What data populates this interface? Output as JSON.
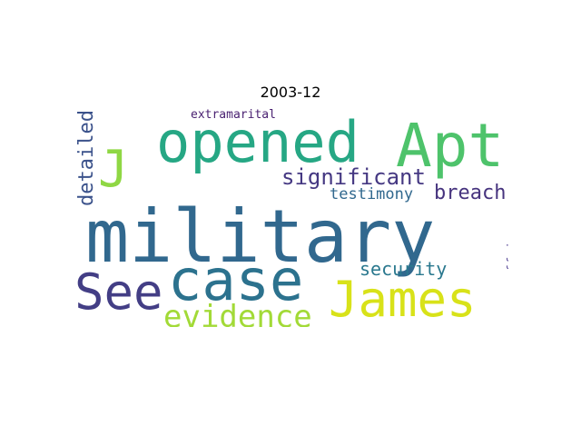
{
  "chart_data": {
    "type": "wordcloud",
    "title": "2003-12",
    "words": [
      {
        "text": "military",
        "color": "#31688e",
        "orientation": "horizontal"
      },
      {
        "text": "opened",
        "color": "#26a784",
        "orientation": "horizontal"
      },
      {
        "text": "Apt",
        "color": "#4ec36b",
        "orientation": "horizontal"
      },
      {
        "text": "case",
        "color": "#2c728e",
        "orientation": "horizontal"
      },
      {
        "text": "See",
        "color": "#433e85",
        "orientation": "horizontal"
      },
      {
        "text": "James",
        "color": "#d8e219",
        "orientation": "horizontal"
      },
      {
        "text": "J",
        "color": "#8fd744",
        "orientation": "horizontal"
      },
      {
        "text": "evidence",
        "color": "#a2da37",
        "orientation": "horizontal"
      },
      {
        "text": "significant",
        "color": "#453882",
        "orientation": "horizontal"
      },
      {
        "text": "security",
        "color": "#2a788e",
        "orientation": "horizontal"
      },
      {
        "text": "breach",
        "color": "#46337e",
        "orientation": "horizontal"
      },
      {
        "text": "testimony",
        "color": "#31688e",
        "orientation": "horizontal"
      },
      {
        "text": "detailed",
        "color": "#3b528b",
        "orientation": "vertical"
      },
      {
        "text": "extramarital",
        "color": "#481f70",
        "orientation": "horizontal"
      },
      {
        "text": "affair",
        "color": "#5c4d9a",
        "orientation": "vertical"
      }
    ]
  }
}
